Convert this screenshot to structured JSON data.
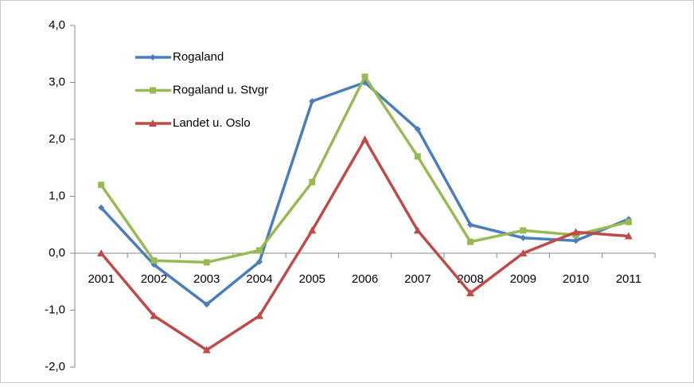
{
  "chart_data": {
    "type": "line",
    "categories": [
      "2001",
      "2002",
      "2003",
      "2004",
      "2005",
      "2006",
      "2007",
      "2008",
      "2009",
      "2010",
      "2011"
    ],
    "series": [
      {
        "name": "Rogaland",
        "color": "#4a7ebb",
        "marker": "diamond",
        "values": [
          0.8,
          -0.2,
          -0.9,
          -0.15,
          2.67,
          3.0,
          2.18,
          0.5,
          0.27,
          0.22,
          0.6
        ]
      },
      {
        "name": "Rogaland u. Stvgr",
        "color": "#98b954",
        "marker": "square",
        "values": [
          1.2,
          -0.13,
          -0.16,
          0.05,
          1.25,
          3.1,
          1.7,
          0.2,
          0.4,
          0.32,
          0.55
        ]
      },
      {
        "name": "Landet u. Oslo",
        "color": "#be4b48",
        "marker": "triangle",
        "values": [
          0.0,
          -1.1,
          -1.7,
          -1.1,
          0.4,
          2.0,
          0.4,
          -0.7,
          0.0,
          0.37,
          0.3
        ]
      }
    ],
    "ylim": [
      -2,
      4
    ],
    "yticks": [
      {
        "value": -2,
        "label": "-2,0"
      },
      {
        "value": -1,
        "label": "-1,0"
      },
      {
        "value": 0,
        "label": "0,0"
      },
      {
        "value": 1,
        "label": "1,0"
      },
      {
        "value": 2,
        "label": "2,0"
      },
      {
        "value": 3,
        "label": "3,0"
      },
      {
        "value": 4,
        "label": "4,0"
      }
    ],
    "grid": false,
    "legend": "top-left"
  }
}
